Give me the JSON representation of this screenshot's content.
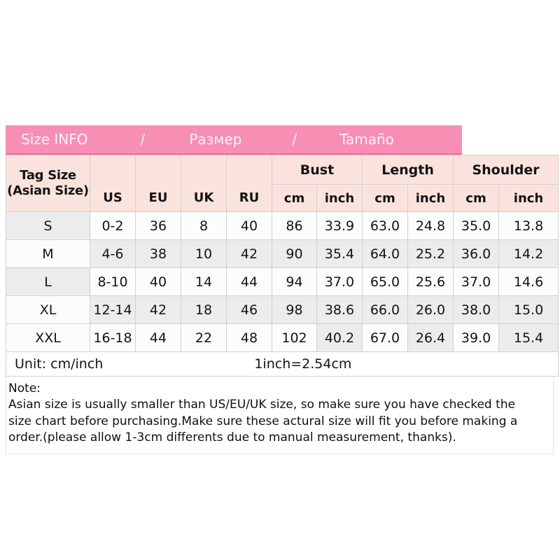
{
  "title_bar": {
    "segments": [
      "Size INFO",
      "/",
      "Размер",
      "/",
      "Tamaño"
    ]
  },
  "chart_data": {
    "type": "table",
    "title": "Size INFO / Размер / Tamaño",
    "header": {
      "tag_line1": "Tag Size",
      "tag_line2": "(Asian Size)",
      "size_systems": [
        "US",
        "EU",
        "UK",
        "RU"
      ],
      "groups": [
        {
          "label": "Bust",
          "units": [
            "cm",
            "inch"
          ]
        },
        {
          "label": "Length",
          "units": [
            "cm",
            "inch"
          ]
        },
        {
          "label": "Shoulder",
          "units": [
            "cm",
            "inch"
          ]
        }
      ]
    },
    "columns": [
      "Tag Size (Asian Size)",
      "US",
      "EU",
      "UK",
      "RU",
      "Bust cm",
      "Bust inch",
      "Length cm",
      "Length inch",
      "Shoulder cm",
      "Shoulder inch"
    ],
    "rows": [
      [
        "S",
        "0-2",
        "36",
        "8",
        "40",
        "86",
        "33.9",
        "63.0",
        "24.8",
        "35.0",
        "13.8"
      ],
      [
        "M",
        "4-6",
        "38",
        "10",
        "42",
        "90",
        "35.4",
        "64.0",
        "25.2",
        "36.0",
        "14.2"
      ],
      [
        "L",
        "8-10",
        "40",
        "14",
        "44",
        "94",
        "37.0",
        "65.0",
        "25.6",
        "37.0",
        "14.6"
      ],
      [
        "XL",
        "12-14",
        "42",
        "18",
        "46",
        "98",
        "38.6",
        "66.0",
        "26.0",
        "38.0",
        "15.0"
      ],
      [
        "XXL",
        "16-18",
        "44",
        "22",
        "48",
        "102",
        "40.2",
        "67.0",
        "26.4",
        "39.0",
        "15.4"
      ]
    ]
  },
  "footer": {
    "unit_label": "Unit: cm/inch",
    "conversion": "1inch=2.54cm"
  },
  "note": {
    "heading": "Note:",
    "body": "Asian size is usually smaller than US/EU/UK size, so make sure you have checked the size chart before purchasing.Make sure these actural size will fit you before making a order.(please allow 1-3cm differents due to manual measurement, thanks)."
  },
  "colors": {
    "pink_bar": "#F78FB4",
    "pink_bar_edge": "#F06C9E",
    "title_text": "#FFF2F7",
    "header_bg": "#FBE3DD",
    "shaded_cell": "#ECECEC",
    "light_cell": "#FCFCFC",
    "cell_border": "#D6D0CF"
  }
}
